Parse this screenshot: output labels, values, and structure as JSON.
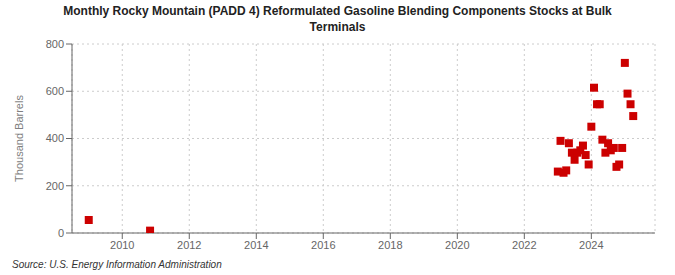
{
  "chart_data": {
    "type": "scatter",
    "title": "Monthly Rocky Mountain (PADD 4) Reformulated Gasoline Blending Components Stocks at Bulk\nTerminals",
    "y_label": "Thousand Barrels",
    "source": "Source: U.S. Energy Information Administration",
    "x": [
      2009.0,
      2010.83,
      2023.0,
      2023.08,
      2023.17,
      2023.25,
      2023.33,
      2023.42,
      2023.5,
      2023.58,
      2023.67,
      2023.75,
      2023.83,
      2023.92,
      2024.0,
      2024.08,
      2024.17,
      2024.25,
      2024.33,
      2024.42,
      2024.5,
      2024.58,
      2024.67,
      2024.75,
      2024.83,
      2024.92,
      2025.0,
      2025.08,
      2025.17,
      2025.25
    ],
    "values": [
      55,
      10,
      260,
      390,
      255,
      265,
      380,
      340,
      310,
      340,
      350,
      370,
      330,
      290,
      450,
      615,
      545,
      545,
      395,
      340,
      380,
      350,
      360,
      280,
      290,
      360,
      720,
      590,
      545,
      495
    ],
    "color": "#cc0000",
    "marker": "square",
    "xlim": [
      2008.5,
      2025.9
    ],
    "xticks": [
      2010,
      2012,
      2014,
      2016,
      2018,
      2020,
      2022,
      2024
    ],
    "ylim": [
      0,
      800
    ],
    "yticks": [
      0,
      200,
      400,
      600,
      800
    ],
    "grid": true
  }
}
